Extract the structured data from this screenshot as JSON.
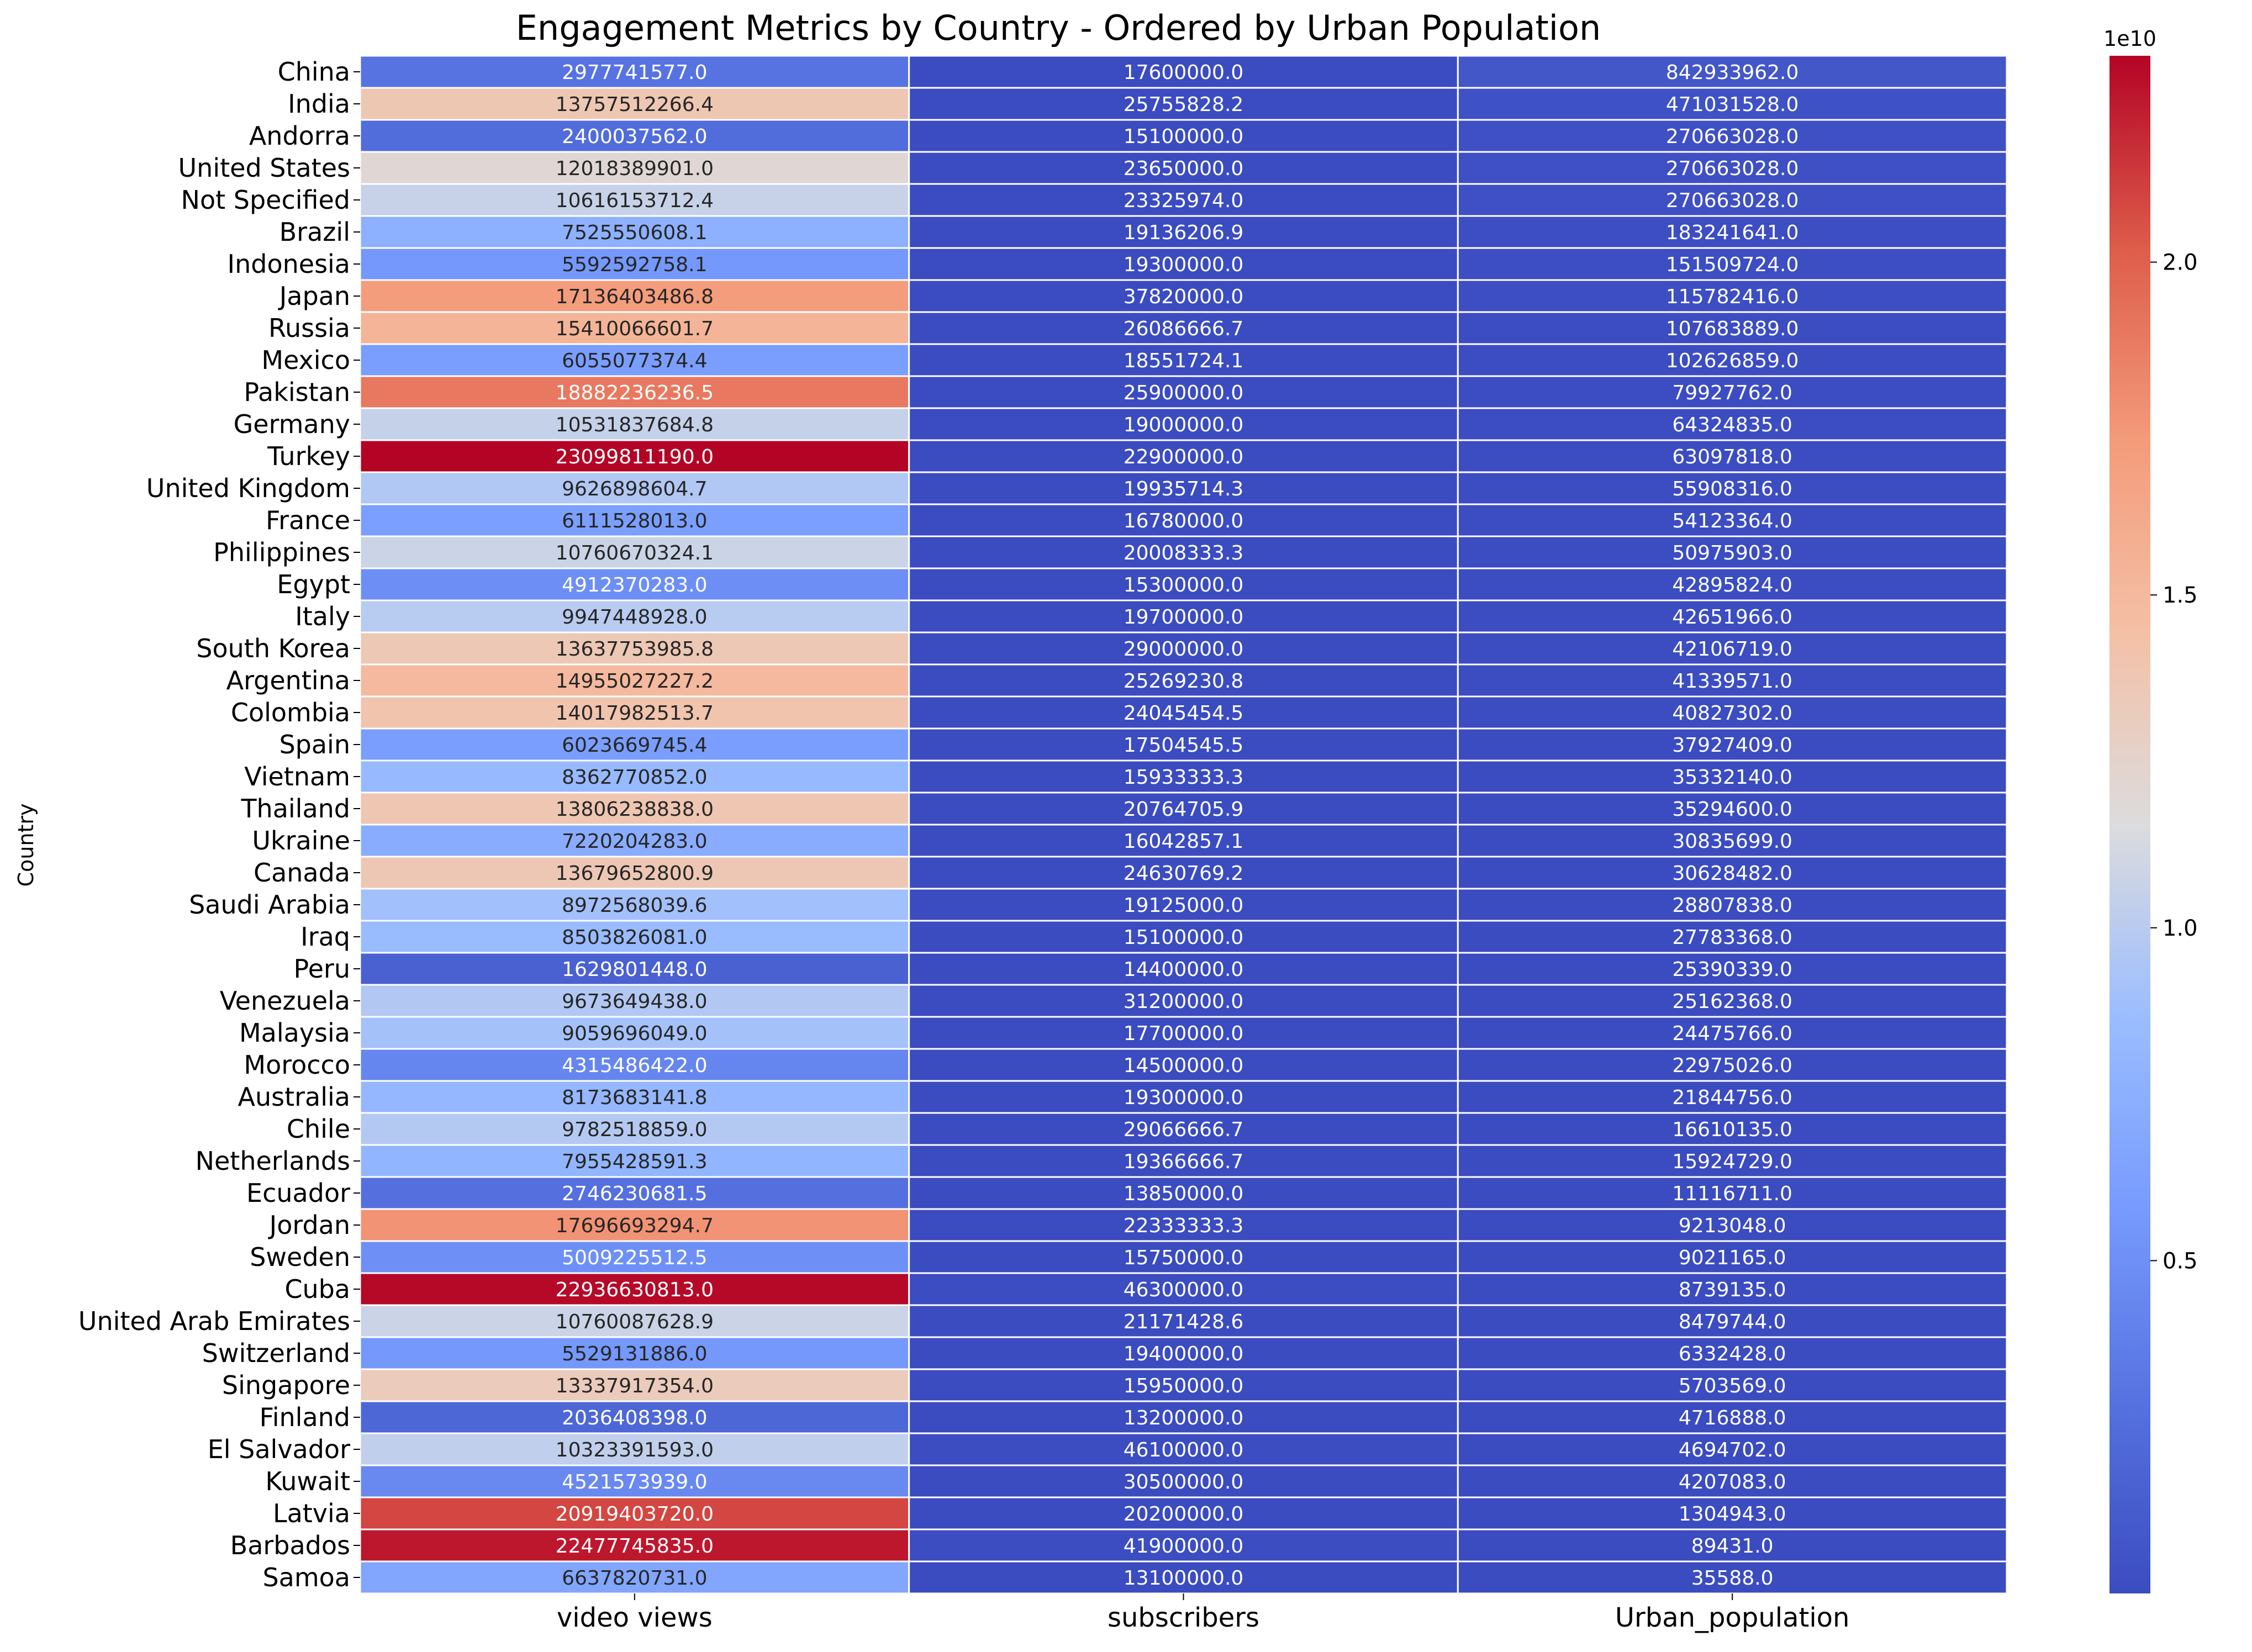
{
  "chart_data": {
    "type": "heatmap",
    "title": "Engagement Metrics by Country - Ordered by Urban Population",
    "ylabel": "Country",
    "columns": [
      "video views",
      "subscribers",
      "Urban_population"
    ],
    "rows": [
      {
        "country": "China",
        "values": [
          2977741577.0,
          17600000.0,
          842933962.0
        ]
      },
      {
        "country": "India",
        "values": [
          13757512266.4,
          25755828.2,
          471031528.0
        ]
      },
      {
        "country": "Andorra",
        "values": [
          2400037562.0,
          15100000.0,
          270663028.0
        ]
      },
      {
        "country": "United States",
        "values": [
          12018389901.0,
          23650000.0,
          270663028.0
        ]
      },
      {
        "country": "Not Specified",
        "values": [
          10616153712.4,
          23325974.0,
          270663028.0
        ]
      },
      {
        "country": "Brazil",
        "values": [
          7525550608.1,
          19136206.9,
          183241641.0
        ]
      },
      {
        "country": "Indonesia",
        "values": [
          5592592758.1,
          19300000.0,
          151509724.0
        ]
      },
      {
        "country": "Japan",
        "values": [
          17136403486.8,
          37820000.0,
          115782416.0
        ]
      },
      {
        "country": "Russia",
        "values": [
          15410066601.7,
          26086666.7,
          107683889.0
        ]
      },
      {
        "country": "Mexico",
        "values": [
          6055077374.4,
          18551724.1,
          102626859.0
        ]
      },
      {
        "country": "Pakistan",
        "values": [
          18882236236.5,
          25900000.0,
          79927762.0
        ]
      },
      {
        "country": "Germany",
        "values": [
          10531837684.8,
          19000000.0,
          64324835.0
        ]
      },
      {
        "country": "Turkey",
        "values": [
          23099811190.0,
          22900000.0,
          63097818.0
        ]
      },
      {
        "country": "United Kingdom",
        "values": [
          9626898604.7,
          19935714.3,
          55908316.0
        ]
      },
      {
        "country": "France",
        "values": [
          6111528013.0,
          16780000.0,
          54123364.0
        ]
      },
      {
        "country": "Philippines",
        "values": [
          10760670324.1,
          20008333.3,
          50975903.0
        ]
      },
      {
        "country": "Egypt",
        "values": [
          4912370283.0,
          15300000.0,
          42895824.0
        ]
      },
      {
        "country": "Italy",
        "values": [
          9947448928.0,
          19700000.0,
          42651966.0
        ]
      },
      {
        "country": "South Korea",
        "values": [
          13637753985.8,
          29000000.0,
          42106719.0
        ]
      },
      {
        "country": "Argentina",
        "values": [
          14955027227.2,
          25269230.8,
          41339571.0
        ]
      },
      {
        "country": "Colombia",
        "values": [
          14017982513.7,
          24045454.5,
          40827302.0
        ]
      },
      {
        "country": "Spain",
        "values": [
          6023669745.4,
          17504545.5,
          37927409.0
        ]
      },
      {
        "country": "Vietnam",
        "values": [
          8362770852.0,
          15933333.3,
          35332140.0
        ]
      },
      {
        "country": "Thailand",
        "values": [
          13806238838.0,
          20764705.9,
          35294600.0
        ]
      },
      {
        "country": "Ukraine",
        "values": [
          7220204283.0,
          16042857.1,
          30835699.0
        ]
      },
      {
        "country": "Canada",
        "values": [
          13679652800.9,
          24630769.2,
          30628482.0
        ]
      },
      {
        "country": "Saudi Arabia",
        "values": [
          8972568039.6,
          19125000.0,
          28807838.0
        ]
      },
      {
        "country": "Iraq",
        "values": [
          8503826081.0,
          15100000.0,
          27783368.0
        ]
      },
      {
        "country": "Peru",
        "values": [
          1629801448.0,
          14400000.0,
          25390339.0
        ]
      },
      {
        "country": "Venezuela",
        "values": [
          9673649438.0,
          31200000.0,
          25162368.0
        ]
      },
      {
        "country": "Malaysia",
        "values": [
          9059696049.0,
          17700000.0,
          24475766.0
        ]
      },
      {
        "country": "Morocco",
        "values": [
          4315486422.0,
          14500000.0,
          22975026.0
        ]
      },
      {
        "country": "Australia",
        "values": [
          8173683141.8,
          19300000.0,
          21844756.0
        ]
      },
      {
        "country": "Chile",
        "values": [
          9782518859.0,
          29066666.7,
          16610135.0
        ]
      },
      {
        "country": "Netherlands",
        "values": [
          7955428591.3,
          19366666.7,
          15924729.0
        ]
      },
      {
        "country": "Ecuador",
        "values": [
          2746230681.5,
          13850000.0,
          11116711.0
        ]
      },
      {
        "country": "Jordan",
        "values": [
          17696693294.7,
          22333333.3,
          9213048.0
        ]
      },
      {
        "country": "Sweden",
        "values": [
          5009225512.5,
          15750000.0,
          9021165.0
        ]
      },
      {
        "country": "Cuba",
        "values": [
          22936630813.0,
          46300000.0,
          8739135.0
        ]
      },
      {
        "country": "United Arab Emirates",
        "values": [
          10760087628.9,
          21171428.6,
          8479744.0
        ]
      },
      {
        "country": "Switzerland",
        "values": [
          5529131886.0,
          19400000.0,
          6332428.0
        ]
      },
      {
        "country": "Singapore",
        "values": [
          13337917354.0,
          15950000.0,
          5703569.0
        ]
      },
      {
        "country": "Finland",
        "values": [
          2036408398.0,
          13200000.0,
          4716888.0
        ]
      },
      {
        "country": "El Salvador",
        "values": [
          10323391593.0,
          46100000.0,
          4694702.0
        ]
      },
      {
        "country": "Kuwait",
        "values": [
          4521573939.0,
          30500000.0,
          4207083.0
        ]
      },
      {
        "country": "Latvia",
        "values": [
          20919403720.0,
          20200000.0,
          1304943.0
        ]
      },
      {
        "country": "Barbados",
        "values": [
          22477745835.0,
          41900000.0,
          89431.0
        ]
      },
      {
        "country": "Samoa",
        "values": [
          6637820731.0,
          13100000.0,
          35588.0
        ]
      }
    ],
    "colormap": "coolwarm",
    "colorscale": {
      "min": 35588.0,
      "max": 23099811190.0,
      "ticks": [
        0.5,
        1.0,
        1.5,
        2.0
      ],
      "multiplier_label": "1e10",
      "multiplier": 10000000000
    },
    "grid": true
  }
}
